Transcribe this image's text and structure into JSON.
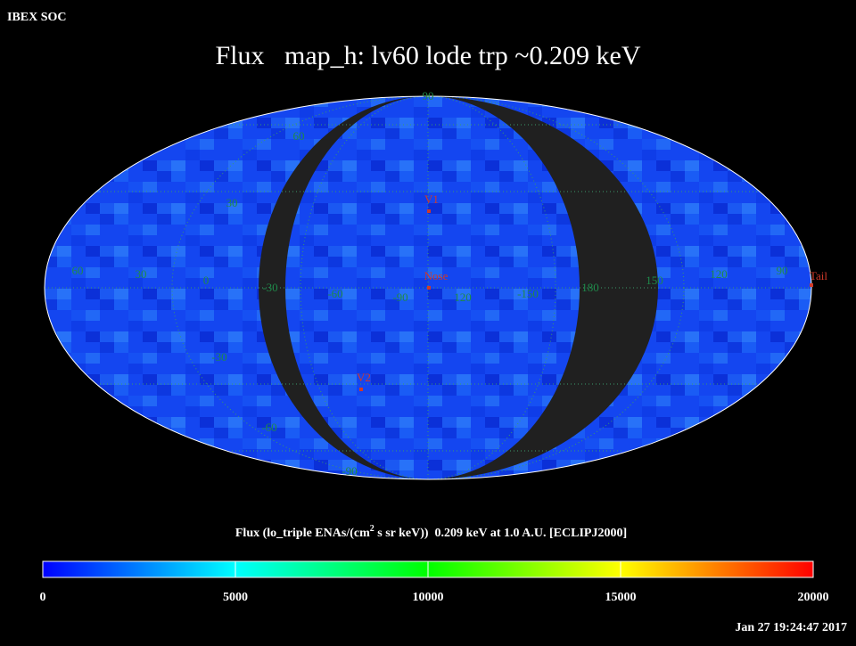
{
  "header": {
    "title": "IBEX SOC",
    "timestamp": "Jan 27 19:24:47 2017"
  },
  "map": {
    "title": "Flux   map_h: lv60 lode trp ~0.209 keV",
    "grid_labels": [
      "90",
      "60",
      "30",
      "-30",
      "-60",
      "-90",
      "60",
      "30",
      "0",
      "-30",
      "-60",
      "-90",
      "120",
      "-150",
      "180",
      "150",
      "120",
      "90"
    ],
    "markers": [
      "V1",
      "Nose",
      "V2",
      "Tail"
    ]
  },
  "colorbar": {
    "label_parts": [
      "Flux (lo_triple ENAs/(cm",
      "2",
      " s sr keV))  0.209 keV at 1.0 A.U. [ECLIPJ2000]"
    ],
    "range": [
      0,
      20000
    ],
    "ticks": [
      0,
      5000,
      10000,
      15000,
      20000
    ]
  }
}
